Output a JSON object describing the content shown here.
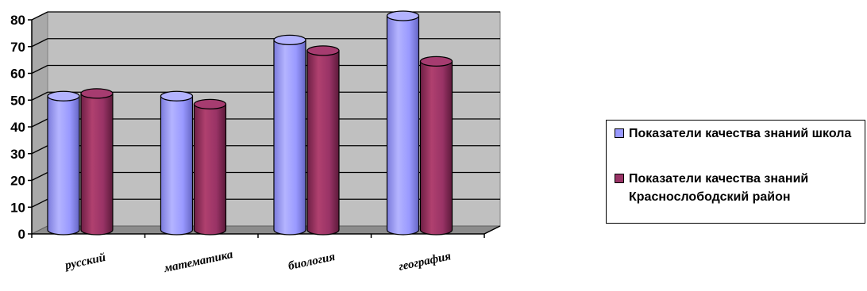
{
  "chart_data": {
    "type": "bar",
    "categories": [
      "русский",
      "математика",
      "биология",
      "география"
    ],
    "series": [
      {
        "name": "Показатели качества знаний школа",
        "values": [
          50,
          50,
          71,
          80
        ],
        "color": "#9999ff"
      },
      {
        "name": "Показатели качества знаний Краснослободский район",
        "values": [
          51,
          47,
          67,
          63
        ],
        "color": "#993366"
      }
    ],
    "ylim": [
      0,
      80
    ],
    "yticks": [
      0,
      10,
      20,
      30,
      40,
      50,
      60,
      70,
      80
    ],
    "grid": true,
    "legend_position": "right",
    "style": "3d-cylinder",
    "wall_color": "#c0c0c0"
  }
}
